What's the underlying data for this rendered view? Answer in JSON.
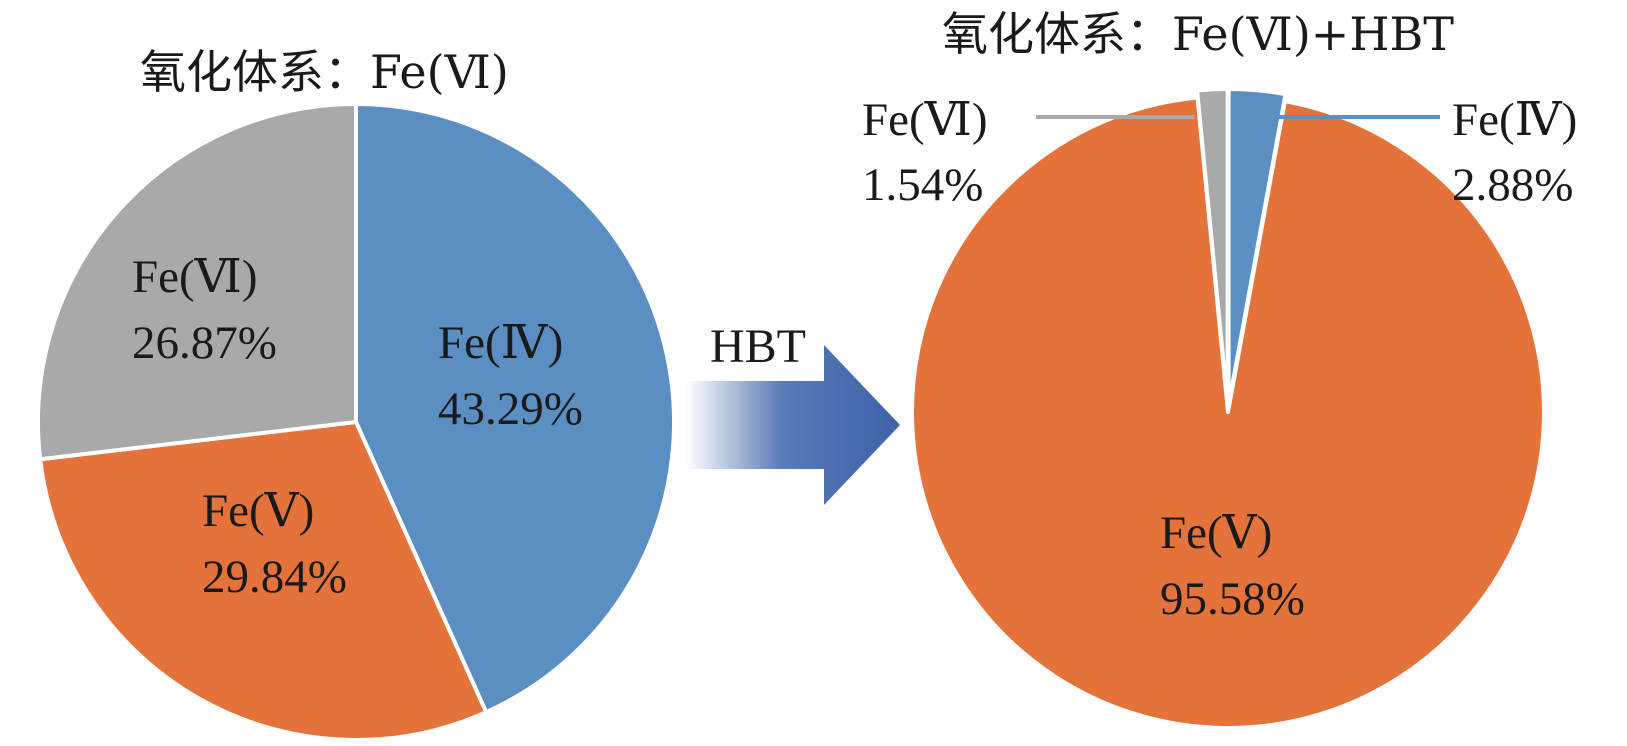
{
  "colors": {
    "fe4": "#5b8ec2",
    "fe5": "#e3733a",
    "fe6": "#a9a9a9",
    "arrow": "#3d62a8",
    "leader_fe6": "#a9a9a9",
    "leader_fe4": "#5b8ec2"
  },
  "arrow": {
    "label": "HBT"
  },
  "chart_data": [
    {
      "type": "pie",
      "title": "氧化体系：Fe(Ⅵ)",
      "slices": [
        {
          "name": "Fe(Ⅳ)",
          "value": 43.29,
          "value_label": "43.29%",
          "color_key": "fe4"
        },
        {
          "name": "Fe(Ⅴ)",
          "value": 29.84,
          "value_label": "29.84%",
          "color_key": "fe5"
        },
        {
          "name": "Fe(Ⅵ)",
          "value": 26.87,
          "value_label": "26.87%",
          "color_key": "fe6"
        }
      ],
      "start_angle_deg": 0,
      "direction": "clockwise"
    },
    {
      "type": "pie",
      "title": "氧化体系：Fe(Ⅵ)+HBT",
      "slices": [
        {
          "name": "Fe(Ⅳ)",
          "value": 2.88,
          "value_label": "2.88%",
          "color_key": "fe4"
        },
        {
          "name": "Fe(Ⅴ)",
          "value": 95.58,
          "value_label": "95.58%",
          "color_key": "fe5"
        },
        {
          "name": "Fe(Ⅵ)",
          "value": 1.54,
          "value_label": "1.54%",
          "color_key": "fe6"
        }
      ],
      "start_angle_deg": 0,
      "direction": "clockwise"
    }
  ]
}
